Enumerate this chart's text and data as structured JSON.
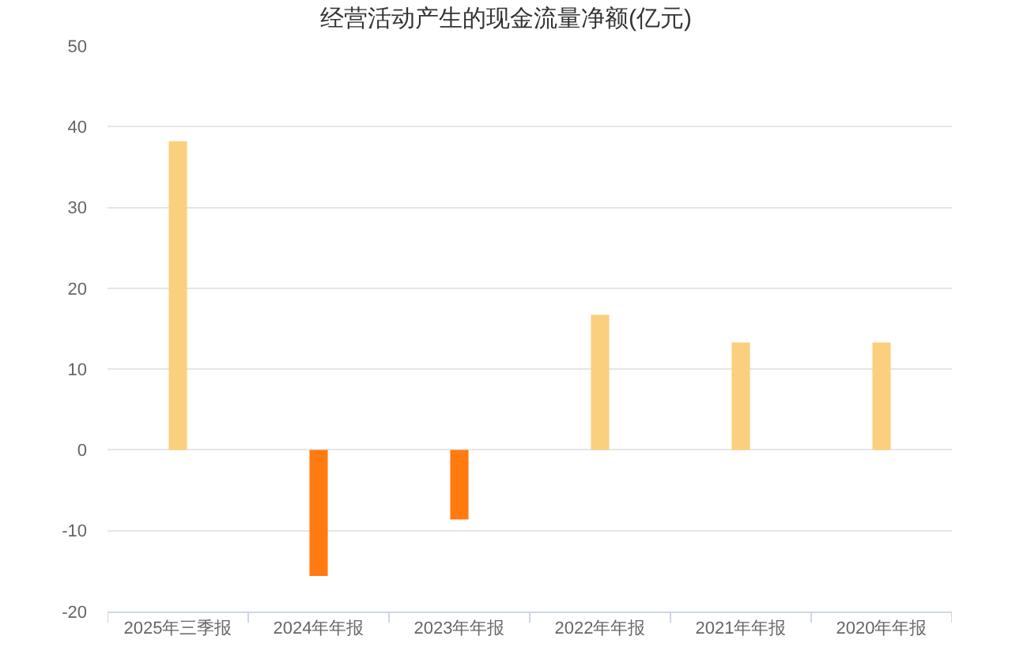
{
  "chart_data": {
    "type": "bar",
    "title": "经营活动产生的现金流量净额(亿元)",
    "categories": [
      "2025年三季报",
      "2024年年报",
      "2023年年报",
      "2022年年报",
      "2021年年报",
      "2020年年报"
    ],
    "values": [
      38.2,
      -15.6,
      -8.6,
      16.7,
      13.3,
      13.3
    ],
    "colors": [
      "#fad07e",
      "#ff7b0f",
      "#ff7b0f",
      "#fad07e",
      "#fad07e",
      "#fad07e"
    ],
    "ylim": [
      -20,
      50
    ],
    "yticks": [
      -20,
      -10,
      0,
      10,
      20,
      30,
      40,
      50
    ],
    "grid": "y"
  }
}
